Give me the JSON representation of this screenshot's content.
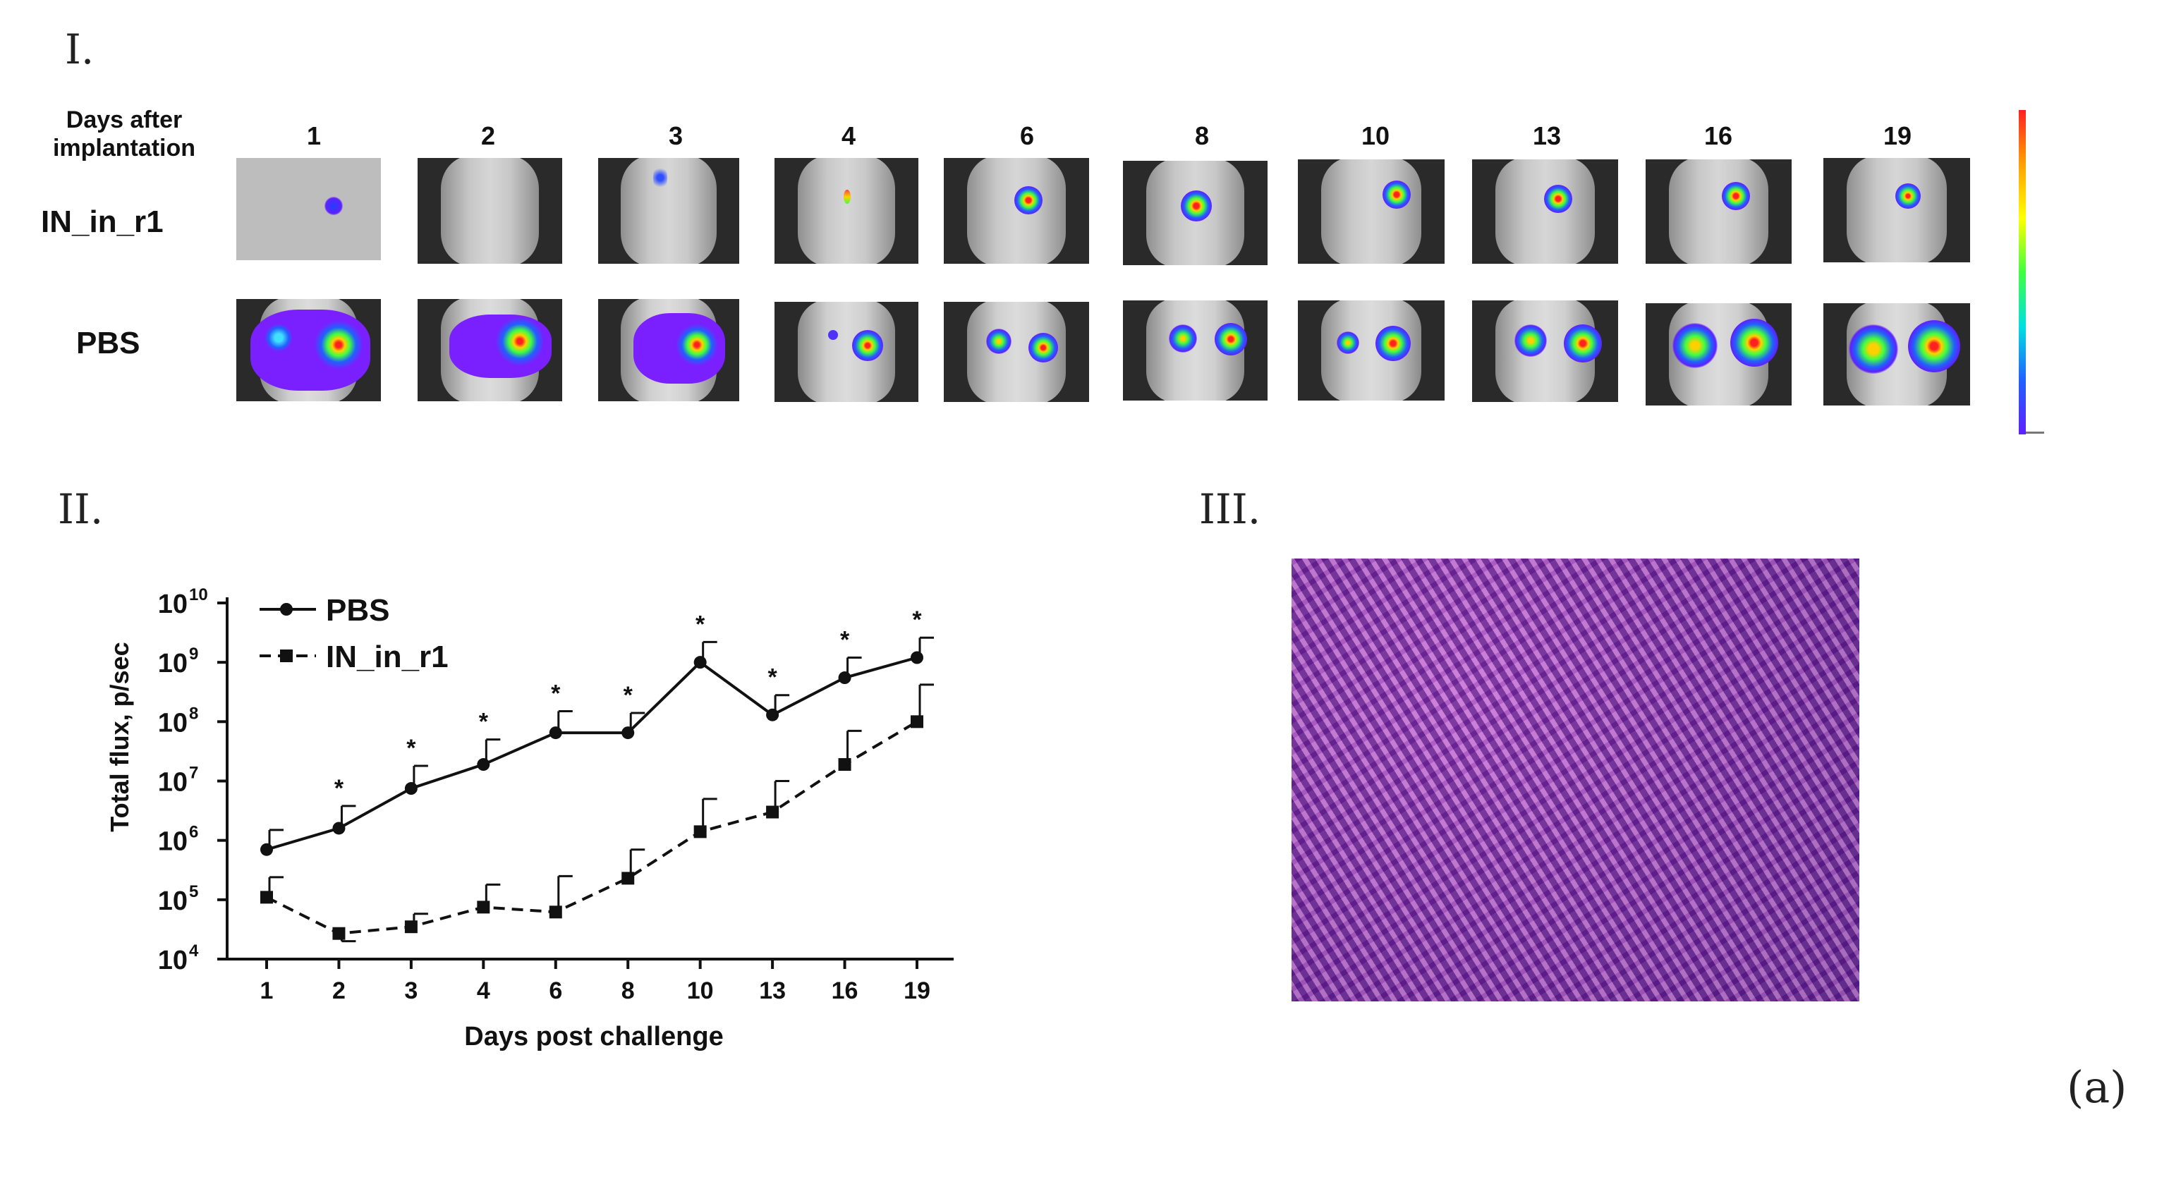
{
  "panel_labels": {
    "panel1": "I.",
    "panel2": "II.",
    "panel3": "III.",
    "figure": "(a)"
  },
  "imaging": {
    "header_line1": "Days after",
    "header_line2": "implantation",
    "days": [
      "1",
      "2",
      "3",
      "4",
      "6",
      "8",
      "10",
      "13",
      "16",
      "19"
    ],
    "row1_label": "IN_in_r1",
    "row2_label": "PBS",
    "colorbar_colors": [
      "#ff2020",
      "#ffa000",
      "#ffff00",
      "#40ff40",
      "#00e0e0",
      "#2060ff",
      "#6020ff"
    ]
  },
  "chart_data": {
    "type": "line",
    "x_scale": "categorical",
    "categories": [
      "1",
      "2",
      "3",
      "4",
      "6",
      "8",
      "10",
      "13",
      "16",
      "19"
    ],
    "xlabel": "Days post challenge",
    "ylabel": "Total  flux, p/sec",
    "y_scale": "log",
    "ylim": [
      10000,
      10000000000
    ],
    "y_tick_bases": [
      "10",
      "10",
      "10",
      "10",
      "10",
      "10",
      "10"
    ],
    "y_tick_exps": [
      "4",
      "5",
      "6",
      "7",
      "8",
      "9",
      "10"
    ],
    "legend_position": "top-left",
    "series": [
      {
        "name": "PBS",
        "style": "solid",
        "marker": "circle",
        "values": [
          700000,
          1600000,
          7500000,
          19000000,
          65000000,
          65000000,
          1000000000,
          130000000,
          550000000,
          1200000000
        ],
        "error_upper": [
          1500000,
          3800000,
          18000000,
          50000000,
          150000000,
          140000000,
          2200000000,
          280000000,
          1200000000,
          2600000000
        ]
      },
      {
        "name": "IN_in_r1",
        "style": "dashed",
        "marker": "square",
        "values": [
          110000,
          27000,
          35000,
          75000,
          62000,
          230000,
          1400000,
          3000000,
          19000000,
          100000000
        ],
        "error_upper": [
          240000,
          20000,
          58000,
          180000,
          250000,
          700000,
          5000000,
          10000000,
          70000000,
          420000000
        ]
      }
    ],
    "significance_marker": "*",
    "significance_days": [
      "2",
      "3",
      "4",
      "6",
      "8",
      "10",
      "13",
      "16",
      "19"
    ]
  },
  "histology": {
    "stain": "H&E"
  }
}
